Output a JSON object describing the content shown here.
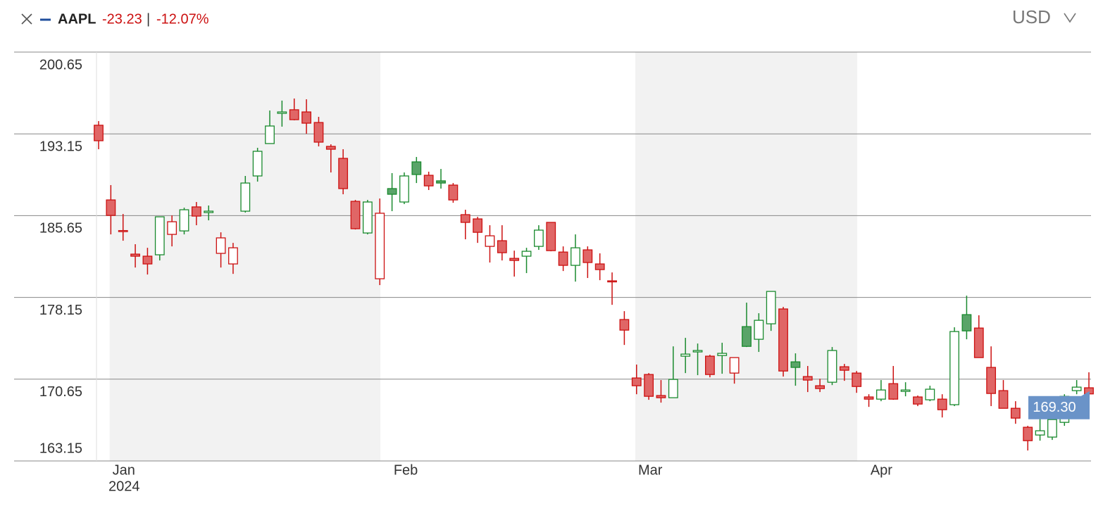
{
  "chart_data": {
    "type": "candlestick",
    "name": "AAPL",
    "color": "#1f4e9c",
    "change": "-23.23",
    "separator": "|",
    "change_pct": "-12.07%",
    "currency": "USD",
    "year": "2024",
    "last_label": "169.30",
    "up_color": "#1a8a2e",
    "up_fill": "#5aa469",
    "down_color": "#cc1111",
    "down_fill": "#e06666",
    "shade_color": "#f2f2f2",
    "categories": [
      null,
      "Jan",
      null,
      null,
      null,
      null,
      null,
      null,
      null,
      null,
      null,
      null,
      null,
      null,
      null,
      null,
      null,
      null,
      null,
      null,
      null,
      null,
      null,
      null,
      "Feb",
      null,
      null,
      null,
      null,
      null,
      null,
      null,
      null,
      null,
      null,
      null,
      null,
      null,
      null,
      null,
      null,
      null,
      null,
      null,
      "Mar",
      null,
      null,
      null,
      null,
      null,
      null,
      null,
      null,
      null,
      null,
      null,
      null,
      null,
      null,
      null,
      null,
      null,
      null,
      "Apr",
      null,
      null,
      null,
      null,
      null,
      null,
      null,
      null,
      null,
      null,
      null,
      null,
      null,
      null,
      null,
      null,
      null,
      null
    ],
    "open": [
      193.94,
      187.09,
      184.25,
      182.12,
      181.93,
      182.06,
      183.93,
      184.25,
      186.45,
      185.93,
      182.19,
      181.22,
      186.06,
      189.29,
      192.26,
      195.03,
      195.36,
      195.16,
      194.19,
      192.0,
      190.9,
      186.96,
      184.06,
      179.86,
      188.13,
      186.9,
      190.58,
      189.35,
      188.84,
      188.45,
      185.74,
      185.35,
      182.83,
      183.35,
      181.73,
      181.93,
      182.83,
      185.03,
      182.31,
      181.09,
      182.51,
      181.22,
      179.67,
      176.12,
      170.76,
      171.08,
      169.15,
      168.95,
      172.76,
      173.15,
      172.76,
      172.82,
      171.21,
      175.47,
      174.31,
      175.73,
      177.09,
      172.24,
      170.89,
      170.05,
      170.37,
      171.79,
      171.21,
      169.02,
      168.82,
      170.24,
      169.53,
      169.02,
      168.76,
      168.82,
      168.31,
      176.57,
      175.34,
      171.73,
      169.6,
      167.98,
      166.24,
      165.53,
      165.34,
      166.69,
      169.6,
      169.86
    ],
    "high": [
      194.32,
      188.45,
      185.8,
      183.03,
      182.7,
      185.54,
      185.67,
      186.38,
      186.9,
      186.58,
      184.12,
      183.15,
      189.29,
      191.87,
      195.29,
      196.2,
      196.39,
      196.32,
      194.71,
      192.19,
      191.74,
      187.09,
      187.09,
      187.22,
      189.55,
      189.61,
      191.03,
      189.68,
      189.93,
      188.64,
      186.19,
      185.54,
      184.77,
      184.77,
      182.44,
      182.7,
      184.77,
      185.03,
      182.83,
      183.93,
      182.83,
      182.19,
      180.44,
      176.89,
      171.99,
      171.21,
      170.57,
      173.66,
      174.44,
      173.92,
      172.89,
      173.99,
      172.63,
      177.67,
      176.7,
      178.7,
      177.28,
      173.02,
      171.86,
      170.69,
      173.6,
      172.05,
      171.4,
      169.27,
      170.57,
      171.86,
      170.37,
      169.15,
      170.05,
      169.27,
      175.41,
      178.31,
      176.51,
      173.66,
      170.57,
      168.63,
      166.37,
      167.01,
      167.34,
      169.27,
      170.57,
      171.28
    ],
    "low": [
      191.74,
      183.93,
      183.35,
      180.89,
      180.25,
      181.54,
      182.83,
      183.93,
      184.77,
      185.22,
      180.89,
      180.31,
      185.93,
      188.77,
      192.26,
      193.81,
      194.39,
      193.16,
      192.0,
      189.61,
      187.61,
      184.38,
      183.93,
      179.28,
      186.06,
      186.71,
      188.64,
      188.0,
      188.13,
      186.83,
      183.48,
      183.15,
      181.35,
      181.54,
      180.06,
      180.38,
      182.51,
      182.38,
      180.57,
      179.6,
      179.93,
      179.73,
      177.47,
      173.79,
      169.27,
      168.76,
      168.5,
      168.95,
      171.21,
      171.02,
      170.82,
      171.15,
      170.24,
      173.6,
      173.15,
      175.08,
      170.89,
      170.05,
      169.47,
      169.47,
      170.11,
      170.5,
      169.4,
      168.11,
      168.63,
      168.76,
      169.08,
      168.18,
      168.63,
      167.14,
      168.18,
      174.31,
      172.63,
      168.18,
      167.98,
      166.56,
      164.11,
      165.01,
      165.08,
      166.37,
      169.27,
      169.27
    ],
    "close": [
      192.52,
      185.67,
      184.28,
      181.93,
      181.22,
      185.54,
      185.09,
      186.19,
      185.61,
      186.06,
      183.61,
      182.7,
      188.64,
      191.55,
      193.87,
      195.16,
      194.45,
      194.13,
      192.39,
      191.74,
      188.13,
      184.45,
      186.9,
      185.87,
      187.61,
      189.29,
      189.42,
      188.38,
      188.64,
      187.09,
      185.03,
      184.12,
      183.8,
      182.25,
      181.54,
      182.38,
      184.32,
      182.44,
      181.09,
      182.7,
      181.35,
      180.7,
      179.6,
      175.15,
      170.05,
      169.08,
      168.95,
      170.63,
      172.95,
      173.28,
      171.08,
      173.02,
      172.63,
      173.66,
      176.05,
      178.7,
      171.4,
      171.73,
      170.57,
      169.79,
      173.28,
      171.47,
      169.98,
      168.82,
      169.66,
      168.82,
      169.66,
      168.37,
      169.73,
      167.85,
      175.02,
      175.08,
      172.63,
      169.34,
      167.98,
      167.08,
      165.01,
      165.92,
      166.95,
      169.08,
      169.92,
      169.3
    ],
    "ylim": [
      163.15,
      200.65
    ],
    "yticks": [
      200.65,
      193.15,
      185.65,
      178.15,
      170.65,
      163.15
    ],
    "grid": true
  }
}
